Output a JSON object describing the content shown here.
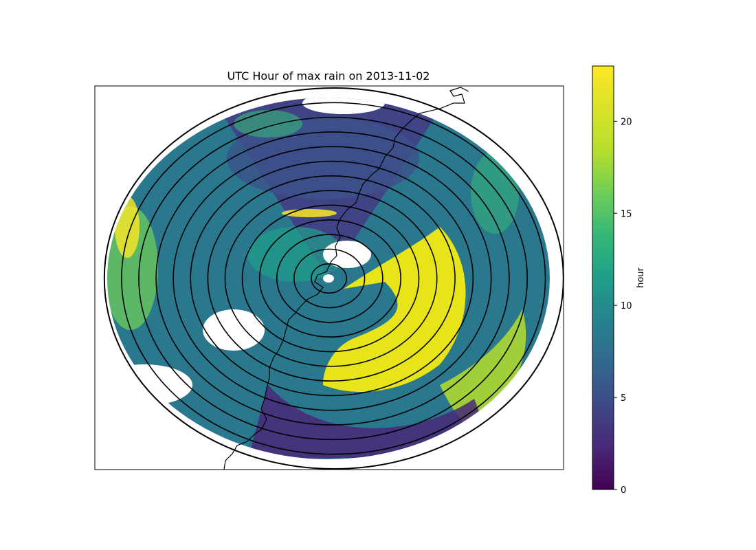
{
  "figure": {
    "title": "UTC Hour  of max rain on 2013-11-02"
  },
  "chart_data": {
    "type": "heatmap",
    "title": "UTC Hour  of max rain on 2013-11-02",
    "colormap": "viridis",
    "colorbar": {
      "label": "hour",
      "range": [
        0,
        23
      ],
      "ticks": [
        0,
        5,
        10,
        15,
        20
      ],
      "tick_labels": [
        "0",
        "5",
        "10",
        "15",
        "20"
      ],
      "placement": "right"
    },
    "range_ring_count": 13,
    "features": [
      "radar range rings",
      "coastline"
    ],
    "axes_ticks_visible": false
  }
}
